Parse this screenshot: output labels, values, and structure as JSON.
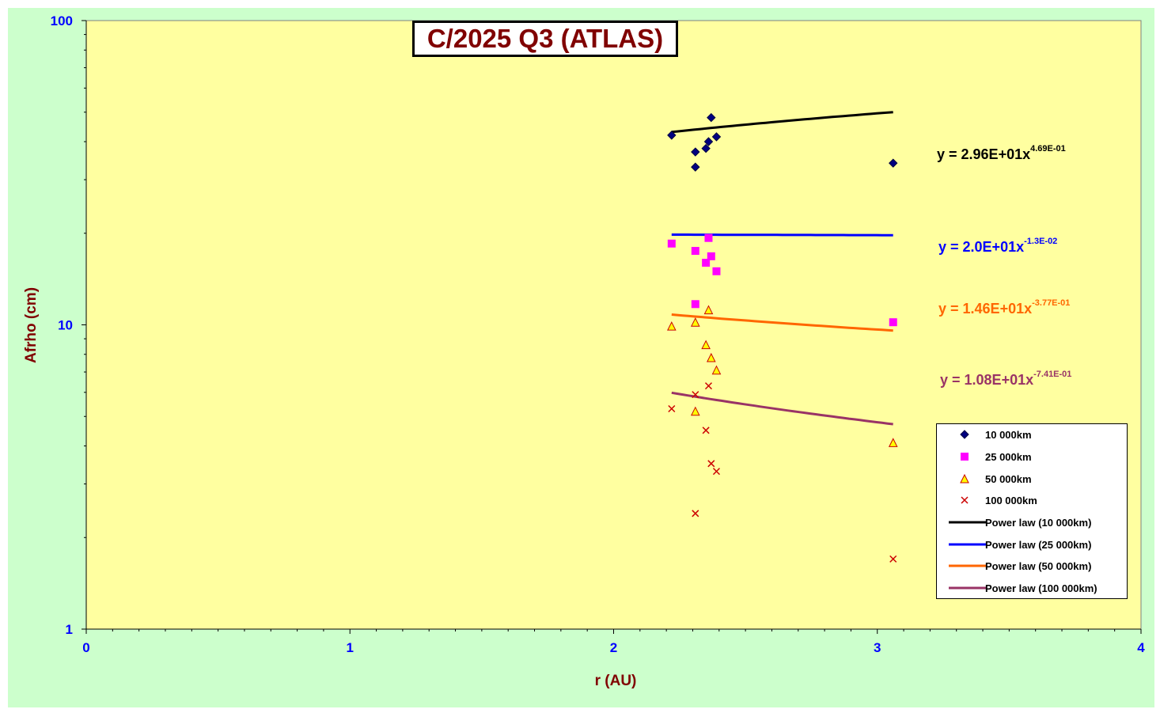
{
  "chart_data": {
    "type": "scatter",
    "title": "C/2025 Q3 (ATLAS)",
    "xlabel": "r (AU)",
    "ylabel": "Afrho (cm)",
    "xlim": [
      0,
      4
    ],
    "ylim": [
      1,
      100
    ],
    "yscale": "log",
    "x_ticks": [
      "0",
      "1",
      "2",
      "3",
      "4"
    ],
    "y_ticks": [
      "1",
      "10",
      "100"
    ],
    "grid": false,
    "legend_position": "right",
    "series": [
      {
        "name": "10 000km",
        "marker": "diamond",
        "color": "#000080",
        "x": [
          2.22,
          2.31,
          2.31,
          2.35,
          2.36,
          2.37,
          2.39,
          3.06
        ],
        "y": [
          42.0,
          37.0,
          33.0,
          38.0,
          40.0,
          48.0,
          41.5,
          34.0
        ]
      },
      {
        "name": "25 000km",
        "marker": "square",
        "color": "#ff00ff",
        "x": [
          2.22,
          2.31,
          2.31,
          2.35,
          2.36,
          2.37,
          2.39,
          3.06
        ],
        "y": [
          18.5,
          17.5,
          11.7,
          16.0,
          19.3,
          16.8,
          15.0,
          10.2
        ]
      },
      {
        "name": "50 000km",
        "marker": "triangle",
        "color": "#ffff00",
        "x": [
          2.22,
          2.31,
          2.31,
          2.35,
          2.36,
          2.37,
          2.39,
          3.06
        ],
        "y": [
          9.9,
          10.2,
          5.2,
          8.6,
          11.2,
          7.8,
          7.1,
          4.1
        ]
      },
      {
        "name": "100 000km",
        "marker": "x",
        "color": "#cc0000",
        "x": [
          2.22,
          2.31,
          2.31,
          2.35,
          2.36,
          2.37,
          2.39,
          3.06
        ],
        "y": [
          5.3,
          5.9,
          2.4,
          4.5,
          6.3,
          3.5,
          3.3,
          1.7
        ]
      }
    ],
    "trendlines": [
      {
        "name": "Power law (10 000km)",
        "color": "#000000",
        "a": 29.6,
        "b": 0.469,
        "equation": "y = 2.96E+01x",
        "exponent": "4.69E-01"
      },
      {
        "name": "Power law (25 000km)",
        "color": "#0000ff",
        "a": 20.0,
        "b": -0.013,
        "equation": "y = 2.0E+01x",
        "exponent": "-1.3E-02"
      },
      {
        "name": "Power law (50 000km)",
        "color": "#ff6600",
        "a": 14.6,
        "b": -0.377,
        "equation": "y = 1.46E+01x",
        "exponent": "-3.77E-01"
      },
      {
        "name": "Power law (100 000km)",
        "color": "#993366",
        "a": 10.8,
        "b": -0.741,
        "equation": "y = 1.08E+01x",
        "exponent": "-7.41E-01"
      }
    ]
  }
}
